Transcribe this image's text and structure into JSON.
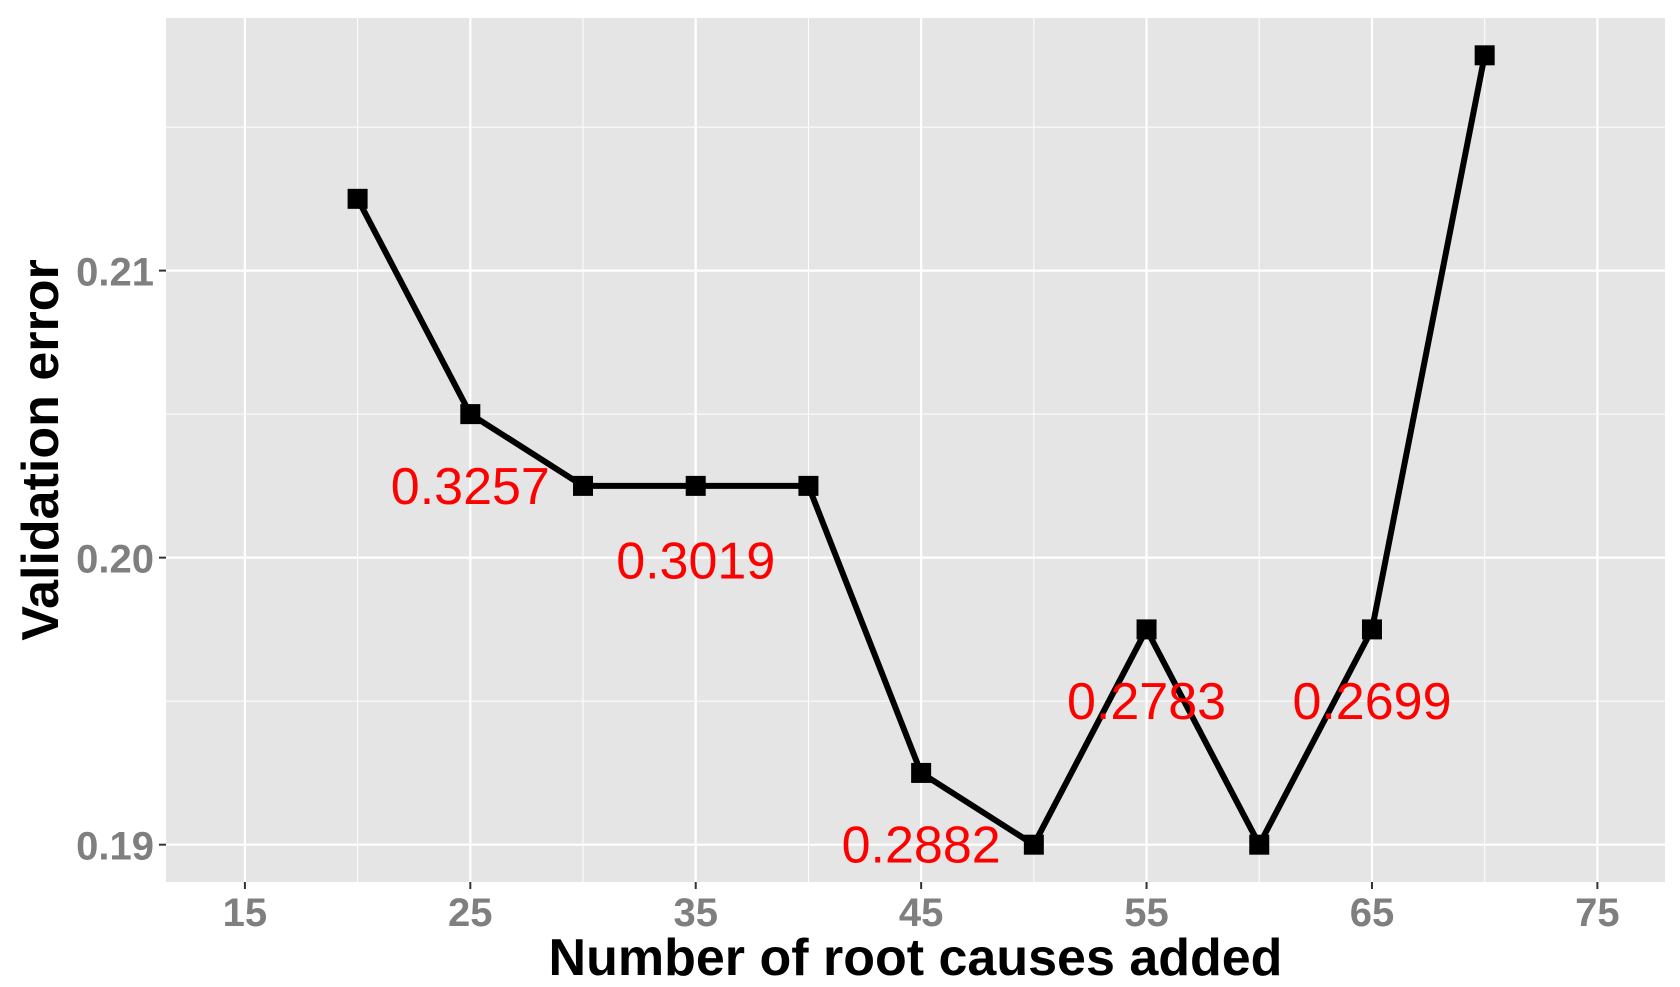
{
  "chart_data": {
    "type": "line",
    "xlabel": "Number of root causes added",
    "ylabel": "Validation error",
    "x_ticks": [
      15,
      25,
      35,
      45,
      55,
      65,
      75
    ],
    "y_ticks": [
      "0.19",
      "0.20",
      "0.21"
    ],
    "xlim": [
      11.5,
      78
    ],
    "ylim": [
      0.1887,
      0.2188
    ],
    "grid": true,
    "series": [
      {
        "x": [
          20,
          25,
          30,
          35,
          40,
          45,
          50,
          55,
          60,
          65,
          70
        ],
        "y": [
          0.2125,
          0.205,
          0.2025,
          0.2025,
          0.2025,
          0.1925,
          0.19,
          0.1975,
          0.19,
          0.1975,
          0.2175
        ]
      }
    ],
    "annotations": [
      {
        "text": "0.3257",
        "x": 25,
        "y": 0.2025
      },
      {
        "text": "0.3019",
        "x": 35,
        "y": 0.1999
      },
      {
        "text": "0.2882",
        "x": 45,
        "y": 0.19
      },
      {
        "text": "0.2783",
        "x": 55,
        "y": 0.195
      },
      {
        "text": "0.2699",
        "x": 65,
        "y": 0.195
      }
    ],
    "colors": {
      "panel": "#e5e5e5",
      "grid": "#ffffff",
      "line": "#000000",
      "annotation": "#ff0000",
      "tick_text": "#7f7f7f"
    }
  }
}
